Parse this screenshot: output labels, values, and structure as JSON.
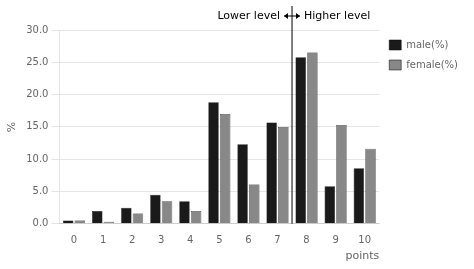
{
  "chart_data": {
    "type": "bar",
    "categories": [
      "0",
      "1",
      "2",
      "3",
      "4",
      "5",
      "6",
      "7",
      "8",
      "9",
      "10"
    ],
    "series": [
      {
        "name": "male(%)",
        "color": "#1a1a1a",
        "values": [
          0.5,
          2.0,
          2.5,
          4.5,
          3.5,
          18.8,
          12.3,
          15.7,
          25.8,
          5.8,
          8.6
        ]
      },
      {
        "name": "female(%)",
        "color": "#888888",
        "values": [
          0.5,
          0.3,
          1.6,
          3.5,
          2.0,
          17.0,
          6.1,
          15.0,
          26.5,
          15.3,
          11.6
        ]
      }
    ],
    "ylabel": "%",
    "xlabel": "points",
    "ylim": [
      0,
      30.0
    ],
    "yticks": [
      {
        "value": 0.0,
        "label": "0.0"
      },
      {
        "value": 5.0,
        "label": "5.0"
      },
      {
        "value": 10.0,
        "label": "10.0"
      },
      {
        "value": 15.0,
        "label": "15.0"
      },
      {
        "value": 20.0,
        "label": "20.0"
      },
      {
        "value": 25.0,
        "label": "25.0"
      },
      {
        "value": 30.0,
        "label": "30.0"
      }
    ],
    "grid": true,
    "legend": "upper right",
    "annotations": [
      {
        "text": "Lower level",
        "x": 7.5
      },
      {
        "text": "Higher level",
        "x": 7.5
      }
    ]
  }
}
